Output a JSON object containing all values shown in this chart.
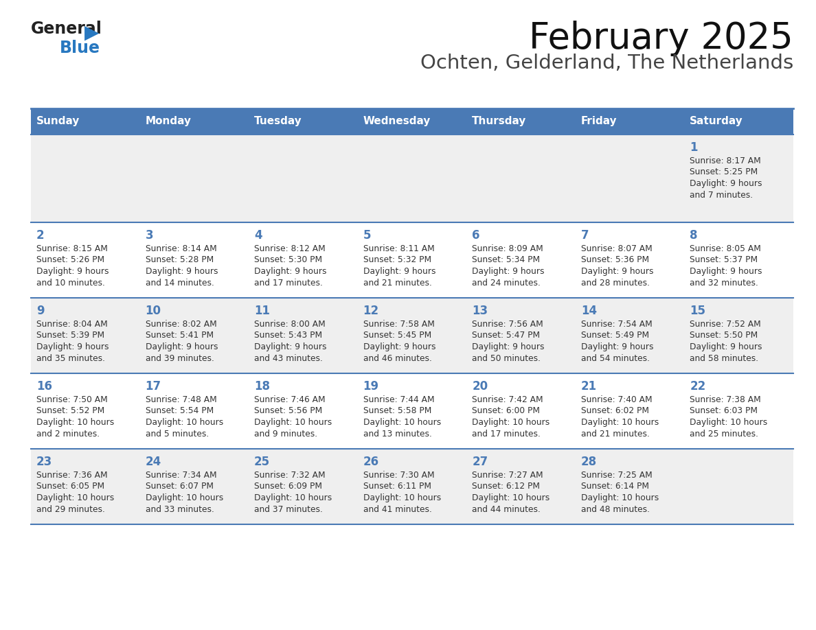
{
  "title": "February 2025",
  "subtitle": "Ochten, Gelderland, The Netherlands",
  "days_of_week": [
    "Sunday",
    "Monday",
    "Tuesday",
    "Wednesday",
    "Thursday",
    "Friday",
    "Saturday"
  ],
  "header_bg": "#4a7ab5",
  "header_text": "#ffffff",
  "row_bg_light": "#efefef",
  "row_bg_white": "#ffffff",
  "day_number_color": "#4a7ab5",
  "text_color": "#333333",
  "border_color": "#4a7ab5",
  "logo_general_color": "#222222",
  "logo_blue_color": "#2878c0",
  "calendar_data": [
    [
      null,
      null,
      null,
      null,
      null,
      null,
      {
        "day": "1",
        "sunrise": "8:17 AM",
        "sunset": "5:25 PM",
        "daylight_line1": "Daylight: 9 hours",
        "daylight_line2": "and 7 minutes."
      }
    ],
    [
      {
        "day": "2",
        "sunrise": "8:15 AM",
        "sunset": "5:26 PM",
        "daylight_line1": "Daylight: 9 hours",
        "daylight_line2": "and 10 minutes."
      },
      {
        "day": "3",
        "sunrise": "8:14 AM",
        "sunset": "5:28 PM",
        "daylight_line1": "Daylight: 9 hours",
        "daylight_line2": "and 14 minutes."
      },
      {
        "day": "4",
        "sunrise": "8:12 AM",
        "sunset": "5:30 PM",
        "daylight_line1": "Daylight: 9 hours",
        "daylight_line2": "and 17 minutes."
      },
      {
        "day": "5",
        "sunrise": "8:11 AM",
        "sunset": "5:32 PM",
        "daylight_line1": "Daylight: 9 hours",
        "daylight_line2": "and 21 minutes."
      },
      {
        "day": "6",
        "sunrise": "8:09 AM",
        "sunset": "5:34 PM",
        "daylight_line1": "Daylight: 9 hours",
        "daylight_line2": "and 24 minutes."
      },
      {
        "day": "7",
        "sunrise": "8:07 AM",
        "sunset": "5:36 PM",
        "daylight_line1": "Daylight: 9 hours",
        "daylight_line2": "and 28 minutes."
      },
      {
        "day": "8",
        "sunrise": "8:05 AM",
        "sunset": "5:37 PM",
        "daylight_line1": "Daylight: 9 hours",
        "daylight_line2": "and 32 minutes."
      }
    ],
    [
      {
        "day": "9",
        "sunrise": "8:04 AM",
        "sunset": "5:39 PM",
        "daylight_line1": "Daylight: 9 hours",
        "daylight_line2": "and 35 minutes."
      },
      {
        "day": "10",
        "sunrise": "8:02 AM",
        "sunset": "5:41 PM",
        "daylight_line1": "Daylight: 9 hours",
        "daylight_line2": "and 39 minutes."
      },
      {
        "day": "11",
        "sunrise": "8:00 AM",
        "sunset": "5:43 PM",
        "daylight_line1": "Daylight: 9 hours",
        "daylight_line2": "and 43 minutes."
      },
      {
        "day": "12",
        "sunrise": "7:58 AM",
        "sunset": "5:45 PM",
        "daylight_line1": "Daylight: 9 hours",
        "daylight_line2": "and 46 minutes."
      },
      {
        "day": "13",
        "sunrise": "7:56 AM",
        "sunset": "5:47 PM",
        "daylight_line1": "Daylight: 9 hours",
        "daylight_line2": "and 50 minutes."
      },
      {
        "day": "14",
        "sunrise": "7:54 AM",
        "sunset": "5:49 PM",
        "daylight_line1": "Daylight: 9 hours",
        "daylight_line2": "and 54 minutes."
      },
      {
        "day": "15",
        "sunrise": "7:52 AM",
        "sunset": "5:50 PM",
        "daylight_line1": "Daylight: 9 hours",
        "daylight_line2": "and 58 minutes."
      }
    ],
    [
      {
        "day": "16",
        "sunrise": "7:50 AM",
        "sunset": "5:52 PM",
        "daylight_line1": "Daylight: 10 hours",
        "daylight_line2": "and 2 minutes."
      },
      {
        "day": "17",
        "sunrise": "7:48 AM",
        "sunset": "5:54 PM",
        "daylight_line1": "Daylight: 10 hours",
        "daylight_line2": "and 5 minutes."
      },
      {
        "day": "18",
        "sunrise": "7:46 AM",
        "sunset": "5:56 PM",
        "daylight_line1": "Daylight: 10 hours",
        "daylight_line2": "and 9 minutes."
      },
      {
        "day": "19",
        "sunrise": "7:44 AM",
        "sunset": "5:58 PM",
        "daylight_line1": "Daylight: 10 hours",
        "daylight_line2": "and 13 minutes."
      },
      {
        "day": "20",
        "sunrise": "7:42 AM",
        "sunset": "6:00 PM",
        "daylight_line1": "Daylight: 10 hours",
        "daylight_line2": "and 17 minutes."
      },
      {
        "day": "21",
        "sunrise": "7:40 AM",
        "sunset": "6:02 PM",
        "daylight_line1": "Daylight: 10 hours",
        "daylight_line2": "and 21 minutes."
      },
      {
        "day": "22",
        "sunrise": "7:38 AM",
        "sunset": "6:03 PM",
        "daylight_line1": "Daylight: 10 hours",
        "daylight_line2": "and 25 minutes."
      }
    ],
    [
      {
        "day": "23",
        "sunrise": "7:36 AM",
        "sunset": "6:05 PM",
        "daylight_line1": "Daylight: 10 hours",
        "daylight_line2": "and 29 minutes."
      },
      {
        "day": "24",
        "sunrise": "7:34 AM",
        "sunset": "6:07 PM",
        "daylight_line1": "Daylight: 10 hours",
        "daylight_line2": "and 33 minutes."
      },
      {
        "day": "25",
        "sunrise": "7:32 AM",
        "sunset": "6:09 PM",
        "daylight_line1": "Daylight: 10 hours",
        "daylight_line2": "and 37 minutes."
      },
      {
        "day": "26",
        "sunrise": "7:30 AM",
        "sunset": "6:11 PM",
        "daylight_line1": "Daylight: 10 hours",
        "daylight_line2": "and 41 minutes."
      },
      {
        "day": "27",
        "sunrise": "7:27 AM",
        "sunset": "6:12 PM",
        "daylight_line1": "Daylight: 10 hours",
        "daylight_line2": "and 44 minutes."
      },
      {
        "day": "28",
        "sunrise": "7:25 AM",
        "sunset": "6:14 PM",
        "daylight_line1": "Daylight: 10 hours",
        "daylight_line2": "and 48 minutes."
      },
      null
    ]
  ]
}
